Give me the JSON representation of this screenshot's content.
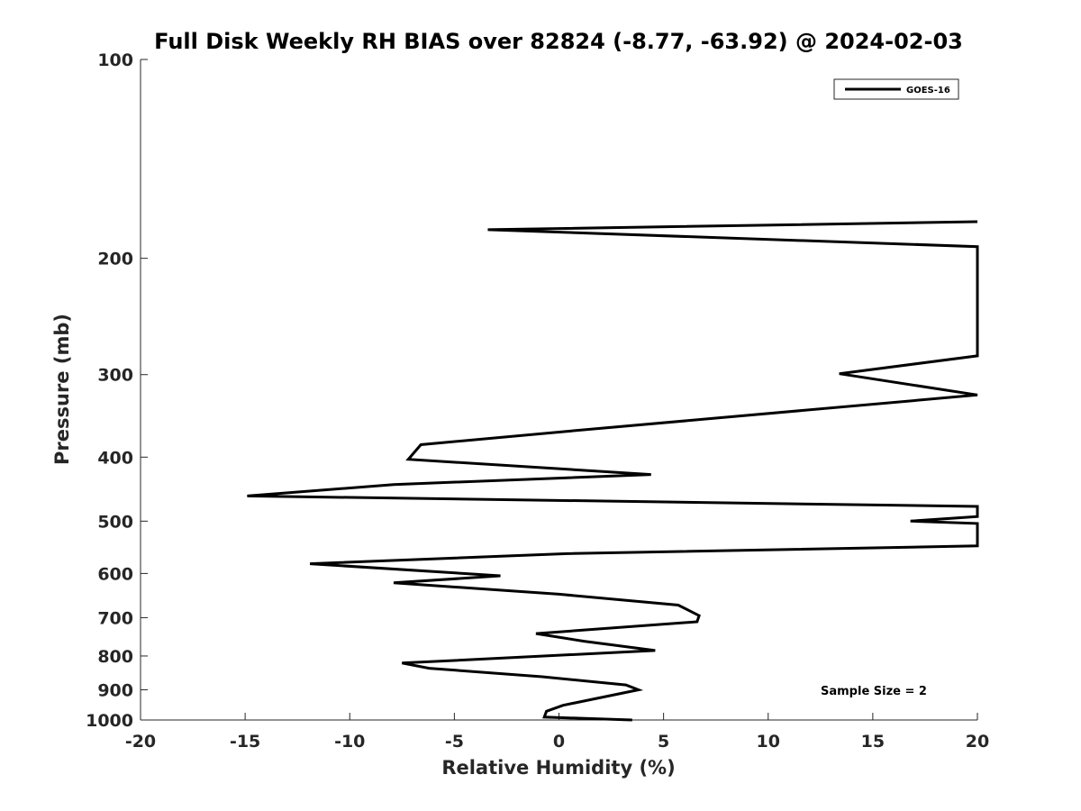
{
  "chart_data": {
    "type": "line",
    "title": "Full Disk Weekly RH BIAS over 82824 (-8.77, -63.92) @ 2024-02-03",
    "xlabel": "Relative Humidity (%)",
    "ylabel": "Pressure (mb)",
    "xlim": [
      -20,
      20
    ],
    "ylim": [
      1000,
      100
    ],
    "y_scale": "log",
    "y_inverted": true,
    "x_ticks": [
      "-20",
      "-15",
      "-10",
      "-5",
      "0",
      "5",
      "10",
      "15",
      "20"
    ],
    "x_tick_values": [
      -20,
      -15,
      -10,
      -5,
      0,
      5,
      10,
      15,
      20
    ],
    "y_ticks": [
      "100",
      "200",
      "300",
      "400",
      "500",
      "600",
      "700",
      "800",
      "900",
      "1000"
    ],
    "y_tick_values": [
      100,
      200,
      300,
      400,
      500,
      600,
      700,
      800,
      900,
      1000
    ],
    "grid": false,
    "legend_position": "top-right",
    "annotation": "Sample Size = 2",
    "series": [
      {
        "name": "GOES-16",
        "color": "#000000",
        "points": [
          [
            3.5,
            1000
          ],
          [
            -0.7,
            990
          ],
          [
            -0.6,
            970
          ],
          [
            0.2,
            950
          ],
          [
            3.8,
            900
          ],
          [
            3.2,
            885
          ],
          [
            -0.8,
            860
          ],
          [
            -6.2,
            835
          ],
          [
            -7.5,
            820
          ],
          [
            4.6,
            785
          ],
          [
            1.2,
            760
          ],
          [
            -1.1,
            740
          ],
          [
            6.6,
            710
          ],
          [
            6.7,
            695
          ],
          [
            5.7,
            670
          ],
          [
            0.0,
            645
          ],
          [
            -7.9,
            620
          ],
          [
            -2.8,
            605
          ],
          [
            -11.9,
            580
          ],
          [
            0.4,
            560
          ],
          [
            20.0,
            545
          ],
          [
            20.0,
            504
          ],
          [
            16.8,
            500
          ],
          [
            20.0,
            492
          ],
          [
            20.0,
            475
          ],
          [
            -14.9,
            458
          ],
          [
            -7.9,
            440
          ],
          [
            4.4,
            425
          ],
          [
            -7.2,
            403
          ],
          [
            -6.6,
            383
          ],
          [
            0.6,
            365
          ],
          [
            20.0,
            322
          ],
          [
            13.4,
            299
          ],
          [
            20.0,
            281
          ],
          [
            20.0,
            192
          ],
          [
            -3.4,
            181
          ],
          [
            20.0,
            176
          ]
        ]
      }
    ]
  }
}
